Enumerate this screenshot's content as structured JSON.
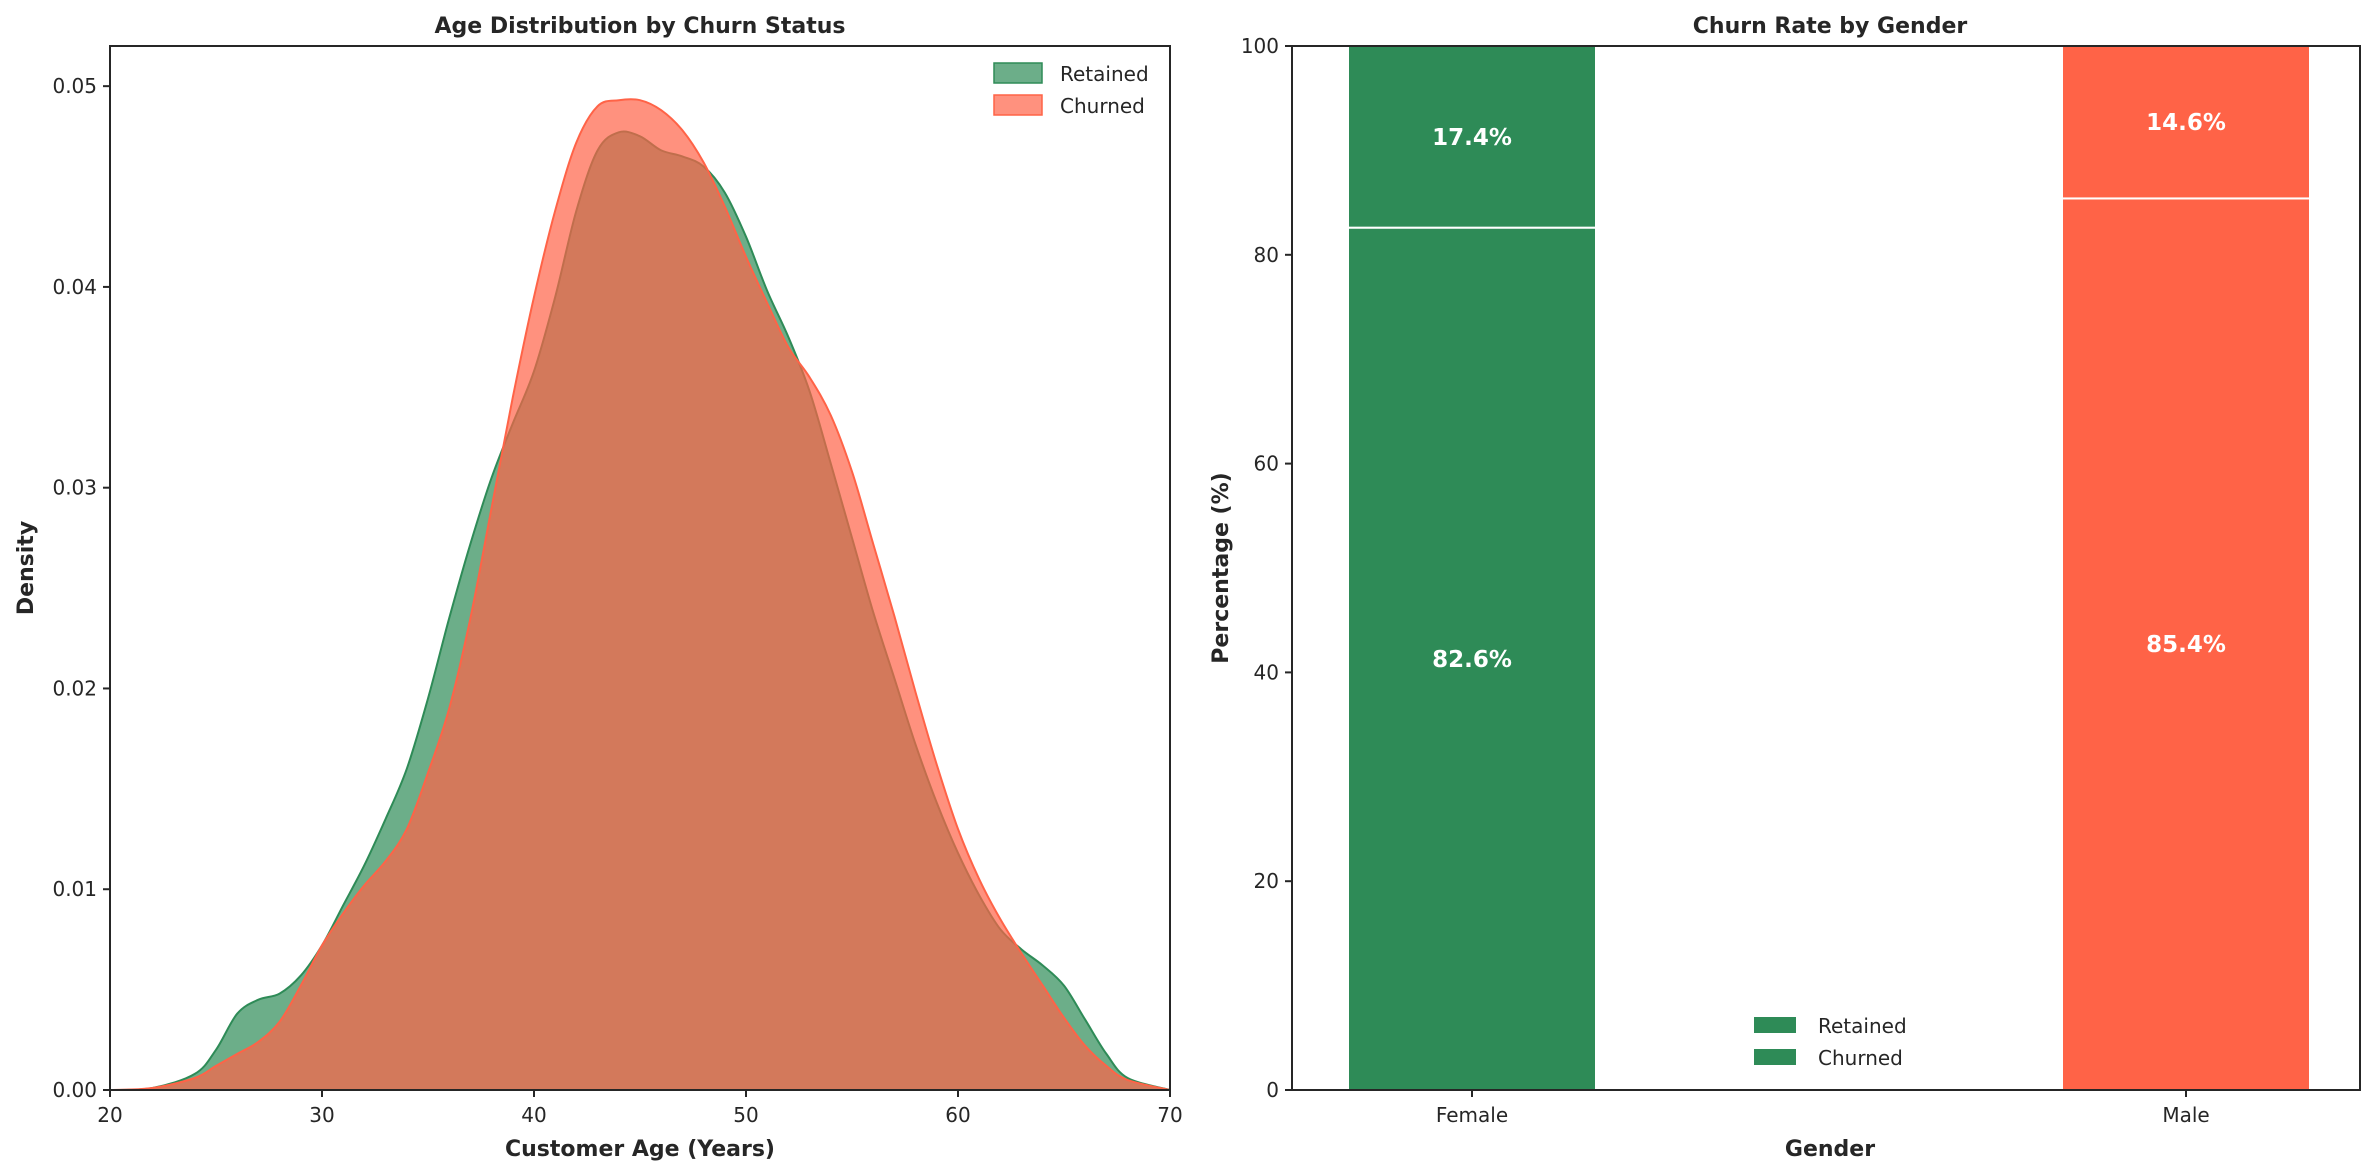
{
  "chart_data": [
    {
      "type": "area",
      "title": "Age Distribution by Churn Status",
      "xlabel": "Customer Age (Years)",
      "ylabel": "Density",
      "xlim": [
        20,
        70
      ],
      "ylim": [
        0,
        0.052
      ],
      "xticks": [
        "20",
        "30",
        "40",
        "50",
        "60",
        "70"
      ],
      "yticks": [
        "0.00",
        "0.01",
        "0.02",
        "0.03",
        "0.04",
        "0.05"
      ],
      "legend": "top-right",
      "grid": false,
      "series": [
        {
          "name": "Retained",
          "color": "#2e8b57",
          "x": [
            20,
            22,
            24,
            25,
            26,
            27,
            28,
            29,
            30,
            31,
            32,
            33,
            34,
            35,
            36,
            37,
            38,
            39,
            40,
            41,
            42,
            43,
            44,
            45,
            46,
            47,
            48,
            49,
            50,
            51,
            52,
            53,
            54,
            55,
            56,
            57,
            58,
            59,
            60,
            61,
            62,
            63,
            64,
            65,
            66,
            67,
            68,
            70
          ],
          "y": [
            0,
            0.0001,
            0.0008,
            0.002,
            0.0038,
            0.0045,
            0.0048,
            0.0057,
            0.0072,
            0.0092,
            0.0112,
            0.0135,
            0.016,
            0.0195,
            0.0235,
            0.0272,
            0.0305,
            0.0332,
            0.0358,
            0.0395,
            0.0438,
            0.0468,
            0.0477,
            0.0475,
            0.0468,
            0.0465,
            0.046,
            0.0447,
            0.0425,
            0.0398,
            0.0375,
            0.0348,
            0.0312,
            0.0275,
            0.0238,
            0.0205,
            0.0172,
            0.0143,
            0.0118,
            0.0097,
            0.008,
            0.007,
            0.0062,
            0.0052,
            0.0035,
            0.0018,
            0.0006,
            0
          ]
        },
        {
          "name": "Churned",
          "color": "#ff6347",
          "x": [
            20,
            22,
            24,
            25,
            26,
            27,
            28,
            29,
            30,
            31,
            32,
            33,
            34,
            35,
            36,
            37,
            38,
            39,
            40,
            41,
            42,
            43,
            44,
            45,
            46,
            47,
            48,
            49,
            50,
            51,
            52,
            53,
            54,
            55,
            56,
            57,
            58,
            59,
            60,
            61,
            62,
            63,
            64,
            65,
            66,
            67,
            68,
            70
          ],
          "y": [
            0,
            0.0001,
            0.0006,
            0.0012,
            0.0018,
            0.0024,
            0.0034,
            0.0052,
            0.0072,
            0.0088,
            0.0102,
            0.0114,
            0.013,
            0.0158,
            0.019,
            0.0235,
            0.029,
            0.0345,
            0.0395,
            0.0438,
            0.0472,
            0.049,
            0.0493,
            0.0493,
            0.0488,
            0.0478,
            0.0462,
            0.044,
            0.0415,
            0.0392,
            0.037,
            0.0355,
            0.0336,
            0.0308,
            0.0272,
            0.0236,
            0.0198,
            0.0162,
            0.013,
            0.0105,
            0.0085,
            0.0068,
            0.0052,
            0.0036,
            0.0022,
            0.0012,
            0.0005,
            0
          ]
        }
      ]
    },
    {
      "type": "bar",
      "title": "Churn Rate by Gender",
      "xlabel": "Gender",
      "ylabel": "Percentage (%)",
      "ylim": [
        0,
        100
      ],
      "yticks": [
        "0",
        "20",
        "40",
        "60",
        "80",
        "100"
      ],
      "categories": [
        "Female",
        "Male"
      ],
      "bar_colors": [
        "#2e8b57",
        "#ff6347"
      ],
      "legend": "lower-center",
      "grid": false,
      "series": [
        {
          "name": "Retained",
          "values": [
            82.6,
            85.4
          ],
          "labels": [
            "82.6%",
            "85.4%"
          ]
        },
        {
          "name": "Churned",
          "values": [
            17.4,
            14.6
          ],
          "labels": [
            "17.4%",
            "14.6%"
          ]
        }
      ],
      "legend_color": "#2e8b57"
    }
  ]
}
